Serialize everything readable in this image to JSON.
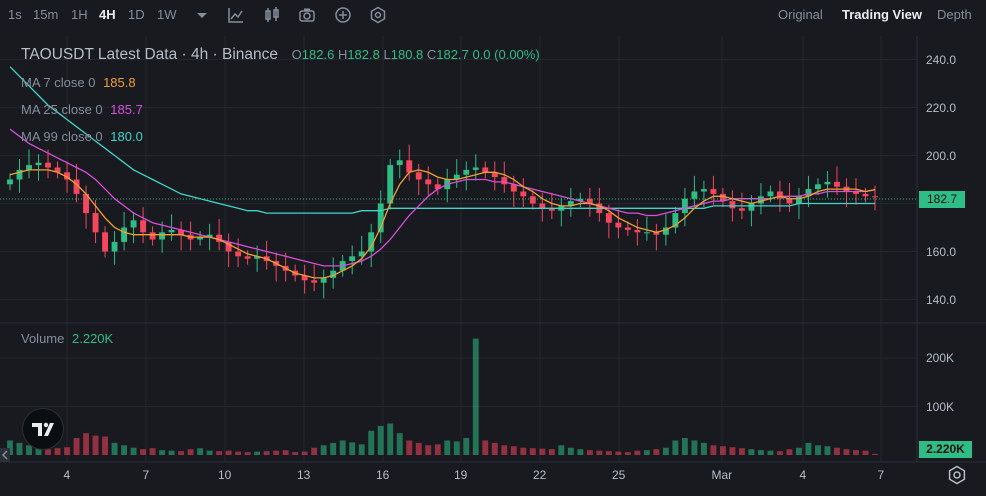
{
  "timeframes": [
    {
      "label": "1s",
      "active": false
    },
    {
      "label": "15m",
      "active": false
    },
    {
      "label": "1H",
      "active": false
    },
    {
      "label": "4H",
      "active": true
    },
    {
      "label": "1D",
      "active": false
    },
    {
      "label": "1W",
      "active": false
    }
  ],
  "toolbar_icons": [
    "chevron-down-icon",
    "indicator-icon",
    "candle-type-icon",
    "camera-icon",
    "add-icon",
    "settings-hex-icon"
  ],
  "view_tabs": [
    {
      "label": "Original",
      "active": false
    },
    {
      "label": "Trading View",
      "active": true
    },
    {
      "label": "Depth",
      "active": false
    }
  ],
  "legend": {
    "title": "TAOUSDT Latest Data · 4h · Binance",
    "o_label": "O",
    "o_value": "182.6",
    "h_label": "H",
    "h_value": "182.8",
    "l_label": "L",
    "l_value": "180.8",
    "c_label": "C",
    "c_value": "182.7",
    "change": "0.0 (0.00%)",
    "ma7_label": "MA 7 close 0",
    "ma7_value": "185.8",
    "ma7_color": "#f0a030",
    "ma25_label": "MA 25 close 0",
    "ma25_value": "185.7",
    "ma25_color": "#d84fd8",
    "ma99_label": "MA 99 close 0",
    "ma99_value": "180.0",
    "ma99_color": "#3fd5c8"
  },
  "volume_legend": {
    "label": "Volume",
    "value": "2.220K"
  },
  "price_badge": "182.7",
  "volume_badge": "2.220K",
  "chart_data": {
    "type": "candlestick",
    "symbol": "TAOUSDT",
    "interval": "4h",
    "exchange": "Binance",
    "up_color": "#2ebd85",
    "down_color": "#f6465d",
    "price_axis_ticks": [
      "240.0",
      "220.0",
      "200.0",
      "180.0",
      "160.0",
      "140.0"
    ],
    "price_ticks_values": [
      240,
      220,
      200,
      180,
      160,
      140
    ],
    "volume_axis_ticks": [
      "200K",
      "100K"
    ],
    "volume_ticks_values": [
      200000,
      100000
    ],
    "x_ticks": [
      "4",
      "7",
      "10",
      "13",
      "16",
      "19",
      "22",
      "25",
      "Mar",
      "4",
      "7"
    ],
    "last_price": 182.7,
    "close_series": [
      190,
      194,
      196,
      197,
      195,
      193,
      190,
      184,
      176,
      168,
      160,
      164,
      170,
      173,
      168,
      165,
      168,
      169,
      167,
      165,
      166,
      167,
      164,
      160,
      158,
      157,
      158,
      156,
      154,
      152,
      150,
      148,
      147,
      149,
      152,
      156,
      158,
      160,
      168,
      180,
      196,
      198,
      193,
      190,
      188,
      186,
      190,
      192,
      194,
      195,
      193,
      191,
      188,
      185,
      183,
      180,
      178,
      177,
      179,
      181,
      182,
      180,
      176,
      172,
      170,
      169,
      168,
      168,
      167,
      170,
      176,
      182,
      185,
      186,
      184,
      181,
      178,
      177,
      180,
      183,
      185,
      182,
      180,
      183,
      186,
      188,
      189,
      187,
      185,
      184,
      183,
      182.7
    ],
    "ma7_series": [
      192,
      193,
      194,
      194,
      194,
      193,
      191,
      188,
      184,
      179,
      174,
      170,
      168,
      167,
      167,
      167,
      167,
      167,
      167,
      166,
      166,
      166,
      165,
      163,
      161,
      159,
      158,
      157,
      155,
      153,
      151,
      150,
      149,
      149,
      150,
      152,
      154,
      157,
      162,
      170,
      180,
      188,
      193,
      194,
      193,
      191,
      190,
      190,
      191,
      192,
      193,
      193,
      192,
      190,
      187,
      185,
      182,
      180,
      179,
      179,
      180,
      180,
      179,
      177,
      174,
      172,
      170,
      169,
      168,
      169,
      171,
      174,
      178,
      181,
      183,
      183,
      182,
      181,
      180,
      181,
      182,
      183,
      182,
      182,
      183,
      185,
      186,
      186,
      186,
      186,
      185,
      185.8
    ],
    "ma25_series": [
      211,
      208,
      205,
      203,
      201,
      199,
      197,
      195,
      193,
      190,
      186,
      182,
      179,
      176,
      174,
      172,
      171,
      170,
      169,
      168,
      167,
      166,
      165,
      164,
      163,
      162,
      161,
      160,
      159,
      158,
      157,
      156,
      155,
      154,
      154,
      154,
      155,
      156,
      158,
      161,
      165,
      170,
      175,
      179,
      183,
      186,
      188,
      189,
      190,
      190,
      190,
      189,
      189,
      188,
      187,
      186,
      185,
      184,
      183,
      182,
      181,
      180,
      179,
      178,
      177,
      176,
      176,
      175,
      175,
      176,
      177,
      178,
      179,
      180,
      181,
      181,
      182,
      182,
      182,
      182,
      182,
      183,
      183,
      183,
      184,
      184,
      185,
      185,
      185,
      185,
      185,
      185.7
    ],
    "ma99_series": [
      237,
      233,
      229,
      225,
      221,
      218,
      215,
      212,
      209,
      206,
      203,
      200,
      197,
      194,
      192,
      190,
      188,
      186,
      184,
      183,
      182,
      181,
      180,
      179,
      178,
      177,
      177,
      176,
      176,
      176,
      176,
      176,
      176,
      176,
      176,
      176,
      176,
      177,
      177,
      177,
      178,
      178,
      178,
      178,
      178,
      178,
      178,
      178,
      178,
      178,
      178,
      178,
      178,
      178,
      178,
      178,
      178,
      178,
      178,
      178,
      178,
      178,
      178,
      178,
      178,
      178,
      178,
      178,
      178,
      178,
      178,
      178,
      178,
      178,
      179,
      179,
      179,
      179,
      179,
      179,
      179,
      179,
      179,
      180,
      180,
      180,
      180,
      180,
      180,
      180,
      180,
      180.0
    ],
    "volume_series": [
      30000,
      25000,
      20000,
      15000,
      12000,
      14000,
      16000,
      35000,
      45000,
      40000,
      38000,
      25000,
      20000,
      15000,
      12000,
      14000,
      10000,
      9000,
      8000,
      12000,
      14000,
      9000,
      8000,
      9000,
      7000,
      6000,
      7000,
      8000,
      9000,
      10000,
      6000,
      7000,
      15000,
      20000,
      25000,
      30000,
      26000,
      22000,
      50000,
      60000,
      65000,
      45000,
      30000,
      25000,
      20000,
      22000,
      30000,
      28000,
      35000,
      240000,
      30000,
      25000,
      20000,
      18000,
      15000,
      14000,
      13000,
      12000,
      20000,
      15000,
      12000,
      10000,
      9000,
      8000,
      7000,
      6000,
      9000,
      10000,
      12000,
      15000,
      30000,
      35000,
      30000,
      25000,
      20000,
      18000,
      16000,
      14000,
      12000,
      10000,
      9000,
      8000,
      12000,
      15000,
      25000,
      20000,
      18000,
      15000,
      12000,
      10000,
      9000,
      2220
    ]
  }
}
